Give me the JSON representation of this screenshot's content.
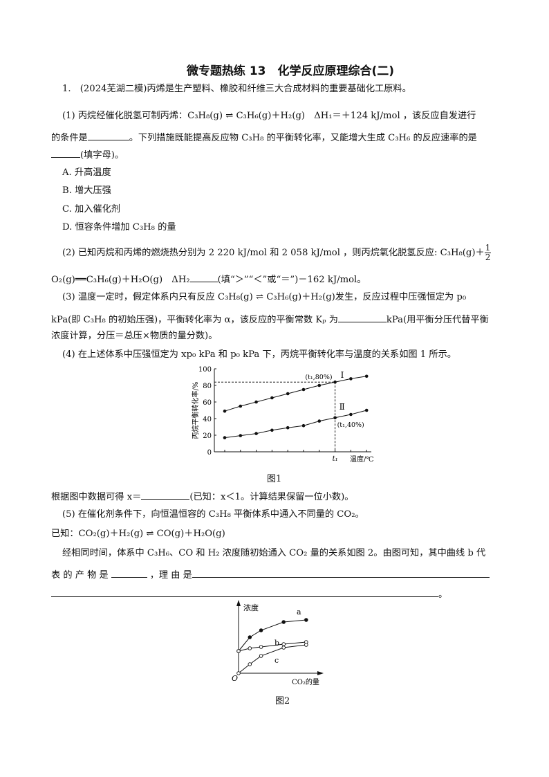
{
  "title": "微专题热练 13　化学反应原理综合(二)",
  "q1": {
    "intro": "1.　(2024芜湖二模)丙烯是生产塑料、橡胶和纤维三大合成材料的重要基础化工原料。",
    "p1_line1": "(1) 丙烷经催化脱氢可制丙烯：C₃H₈(g) ⇌ C₃H₆(g)＋H₂(g)　ΔH₁＝＋124 kJ/mol ，该反应自发进行",
    "p1_line2a": "的条件是",
    "p1_line2b": "。下列措施既能提高反应物 C₃H₈ 的平衡转化率，又能增大生成 C₃H₆ 的反应速率的是",
    "p1_line3": "(填字母)。",
    "options": [
      "A.  升高温度",
      "B.  增大压强",
      "C.  加入催化剂",
      "D.  恒容条件增加 C₃H₈ 的量"
    ],
    "p2_line1": "(2) 已知丙烷和丙烯的燃烧热分别为 2 220 kJ/mol 和 2 058 kJ/mol ，则丙烷氧化脱氢反应: C₃H₈(g)＋",
    "p2_frac_num": "1",
    "p2_frac_den": "2",
    "p2_line2a": "O₂(g)══C₃H₆(g)＋H₂O(g)　ΔH₂",
    "p2_line2b": "(填“＞”“＜”或“＝”)－162 kJ/mol。",
    "p3_line1": "(3) 温度一定时，假定体系内只有反应 C₃H₈(g) ⇌ C₃H₆(g)＋H₂(g)发生，反应过程中压强恒定为 p₀",
    "p3_line2a": "kPa(即 C₃H₈ 的初始压强)，平衡转化率为 α，该反应的平衡常数 Kₚ 为",
    "p3_line2b": "kPa(用平衡分压代替平衡",
    "p3_line3": "浓度计算，分压＝总压×物质的量分数)。",
    "p4_line1": "(4) 在上述体系中压强恒定为 xp₀ kPa 和 p₀ kPa 下，丙烷平衡转化率与温度的关系如图 1 所示。",
    "fig1_caption": "图1",
    "p4_line2a": "根据图中数据可得 x＝",
    "p4_line2b": "(已知：x＜1。计算结果保留一位小数)。",
    "p5_line1": "(5) 在催化剂条件下，向恒温恒容的 C₃H₈ 平衡体系中通入不同量的 CO₂。",
    "p5_line2": "已知：CO₂(g)＋H₂(g) ⇌ CO(g)＋H₂O(g)",
    "p5_line3": "经相同时间，体系中 C₃H₆、CO 和 H₂ 浓度随初始通入 CO₂ 量的关系如图 2。由图可知，其中曲线 b 代",
    "p5_line4a": "表 的 产 物 是",
    "p5_line4b": "，理 由 是",
    "p5_line5_end": "。",
    "fig2_caption": "图2"
  },
  "chart_data": [
    {
      "type": "line",
      "ylabel": "丙烷平衡转化率/%",
      "xlabel": "温度/℃",
      "ylim": [
        0,
        100
      ],
      "yticks": [
        "0",
        "20",
        "40",
        "60",
        "80",
        "100"
      ],
      "xtick_label": "t₁",
      "series": [
        {
          "name": "Ⅰ",
          "values": [
            49,
            55,
            60,
            65,
            70,
            75,
            80,
            84,
            88,
            91
          ]
        },
        {
          "name": "Ⅱ",
          "values": [
            17,
            19.5,
            22,
            26,
            29,
            31.5,
            37,
            41,
            45,
            50
          ]
        }
      ],
      "annotations": [
        "(t₁,80%)",
        "(t₁,40%)"
      ],
      "grid": false
    },
    {
      "type": "line",
      "ylabel": "浓度",
      "xlabel": "CO₂的量",
      "origin_label": "O",
      "x": [
        0,
        1,
        2,
        4,
        6
      ],
      "series": [
        {
          "name": "a",
          "values": [
            3.2,
            5.2,
            6.2,
            7.4,
            7.7
          ],
          "marker": "filled"
        },
        {
          "name": "b",
          "values": [
            3.2,
            3.6,
            3.8,
            4.2,
            4.5
          ],
          "marker": "open"
        },
        {
          "name": "c",
          "values": [
            0,
            1.3,
            2.5,
            3.7,
            4.1
          ],
          "marker": "open"
        }
      ],
      "grid": false
    }
  ]
}
